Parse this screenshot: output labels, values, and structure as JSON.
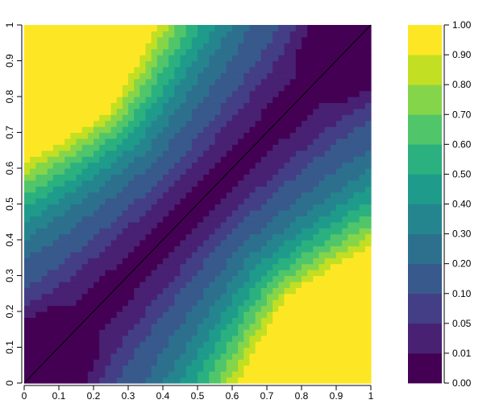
{
  "chart_data": {
    "type": "heatmap",
    "title": "",
    "xlabel": "",
    "ylabel": "",
    "xlim": [
      0,
      1
    ],
    "ylim": [
      0,
      1
    ],
    "x_ticks": [
      "0",
      "0.1",
      "0.2",
      "0.3",
      "0.4",
      "0.5",
      "0.6",
      "0.7",
      "0.8",
      "0.9",
      "1"
    ],
    "y_ticks": [
      "0",
      "0.1",
      "0.2",
      "0.3",
      "0.4",
      "0.5",
      "0.6",
      "0.7",
      "0.8",
      "0.9",
      "1"
    ],
    "grid_resolution": 60,
    "legend_placement": "right",
    "colorbar": {
      "breaks": [
        "0.00",
        "0.01",
        "0.05",
        "0.10",
        "0.20",
        "0.30",
        "0.40",
        "0.50",
        "0.60",
        "0.70",
        "0.80",
        "0.90",
        "1.00"
      ],
      "colors": [
        "#440154",
        "#482173",
        "#433E85",
        "#38598C",
        "#2D708E",
        "#25858E",
        "#1E9B8A",
        "#2BB07F",
        "#51C56A",
        "#85D54A",
        "#C2DF23",
        "#FDE725"
      ]
    },
    "reference_line": {
      "from": [
        0,
        0
      ],
      "to": [
        1,
        1
      ],
      "color": "#000000"
    }
  }
}
